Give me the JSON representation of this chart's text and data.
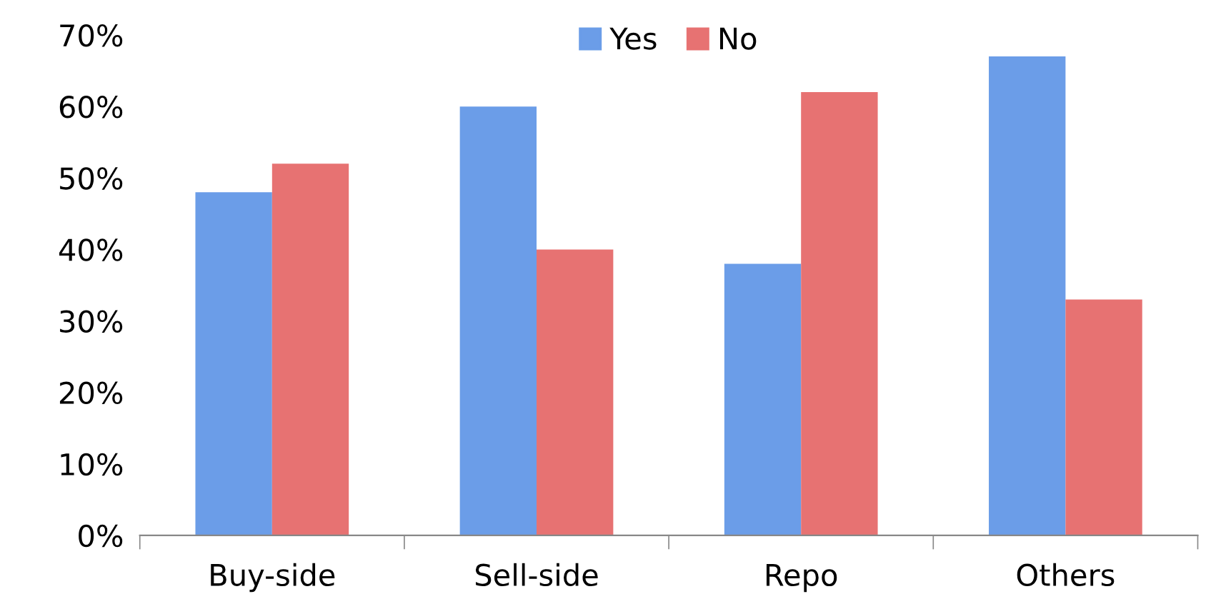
{
  "chart_data": {
    "type": "bar",
    "categories": [
      "Buy-side",
      "Sell-side",
      "Repo",
      "Others"
    ],
    "series": [
      {
        "name": "Yes",
        "color": "#6b9de8",
        "values": [
          48,
          60,
          38,
          67
        ]
      },
      {
        "name": "No",
        "color": "#e77272",
        "values": [
          52,
          40,
          62,
          33
        ]
      }
    ],
    "ylim": [
      0,
      70
    ],
    "yticks": [
      {
        "value": 0,
        "label": "0%"
      },
      {
        "value": 10,
        "label": "10%"
      },
      {
        "value": 20,
        "label": "20%"
      },
      {
        "value": 30,
        "label": "30%"
      },
      {
        "value": 40,
        "label": "40%"
      },
      {
        "value": 50,
        "label": "50%"
      },
      {
        "value": 60,
        "label": "60%"
      },
      {
        "value": 70,
        "label": "70%"
      }
    ],
    "grid": false,
    "legend": "top"
  }
}
